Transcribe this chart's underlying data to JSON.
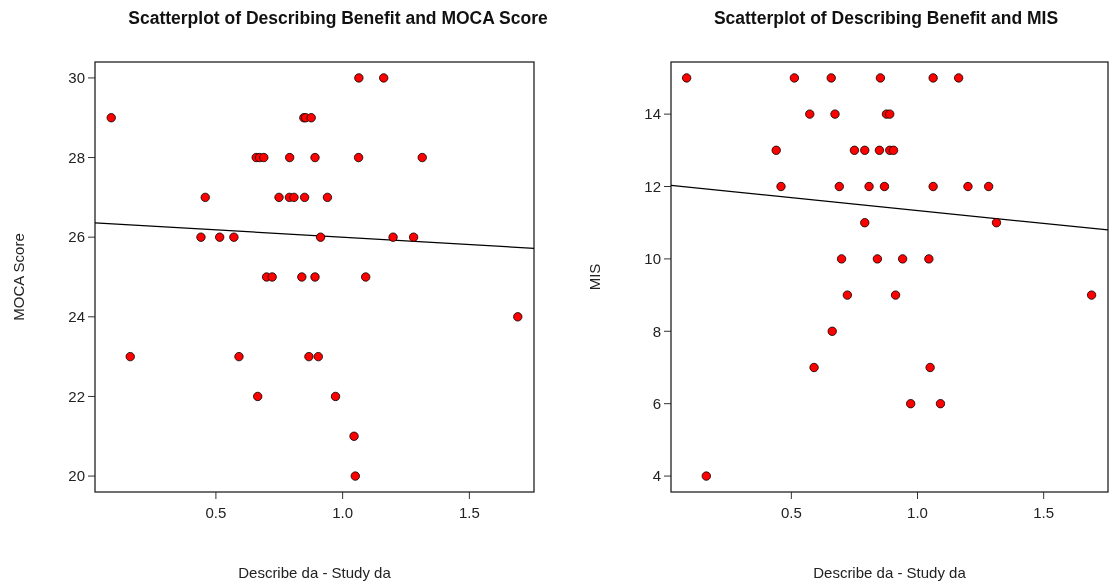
{
  "chart_data": [
    {
      "type": "scatter",
      "title": "Scatterplot of Describing Benefit and MOCA Score",
      "xlabel": "Describe da - Study da",
      "ylabel": "MOCA Score",
      "xlim": [
        0.023,
        1.755
      ],
      "ylim": [
        19.6,
        30.4
      ],
      "xticks": [
        {
          "value": 0.5,
          "label": "0.5"
        },
        {
          "value": 1,
          "label": "1.0"
        },
        {
          "value": 1.5,
          "label": "1.5"
        }
      ],
      "yticks": [
        20,
        22,
        24,
        26,
        28,
        30
      ],
      "series": [
        {
          "type": "scatter",
          "marker": "circle",
          "color": "#ff0000",
          "x": [
            1.064,
            1.162,
            0.087,
            0.847,
            0.854,
            0.876,
            0.659,
            0.672,
            0.689,
            0.791,
            0.891,
            1.063,
            1.314,
            0.458,
            0.749,
            0.79,
            0.808,
            0.85,
            0.94,
            0.441,
            0.515,
            0.571,
            0.913,
            1.199,
            1.28,
            0.7,
            0.722,
            0.839,
            0.891,
            1.091,
            1.691,
            0.162,
            0.591,
            0.867,
            0.904,
            0.665,
            0.972,
            1.045,
            1.05
          ],
          "values": [
            30,
            30,
            29,
            29,
            29,
            29,
            28,
            28,
            28,
            28,
            28,
            28,
            28,
            27,
            27,
            27,
            27,
            27,
            27,
            26,
            26,
            26,
            26,
            26,
            26,
            25,
            25,
            25,
            25,
            25,
            24,
            23,
            23,
            23,
            23,
            22,
            22,
            21,
            20
          ]
        },
        {
          "type": "line",
          "marker": "none",
          "color": "#000000",
          "x": [
            0.023,
            1.755
          ],
          "values": [
            26.36,
            25.72
          ]
        }
      ]
    },
    {
      "type": "scatter",
      "title": "Scatterplot of Describing Benefit and MIS",
      "xlabel": "Describe da - Study da",
      "ylabel": "MIS",
      "xlim": [
        0.023,
        1.755
      ],
      "ylim": [
        3.56,
        15.44
      ],
      "xticks": [
        {
          "value": 0.5,
          "label": "0.5"
        },
        {
          "value": 1,
          "label": "1.0"
        },
        {
          "value": 1.5,
          "label": "1.5"
        }
      ],
      "yticks": [
        4,
        6,
        8,
        10,
        12,
        14
      ],
      "series": [
        {
          "type": "scatter",
          "marker": "circle",
          "color": "#ff0000",
          "x": [
            0.085,
            0.512,
            0.658,
            0.853,
            1.062,
            1.163,
            0.573,
            0.673,
            0.877,
            0.89,
            0.44,
            0.75,
            0.791,
            0.849,
            0.89,
            0.905,
            0.459,
            0.69,
            0.808,
            0.869,
            1.062,
            1.2,
            1.282,
            0.791,
            1.313,
            0.699,
            0.841,
            0.941,
            1.045,
            0.722,
            0.913,
            1.69,
            0.662,
            0.59,
            1.05,
            0.973,
            1.091,
            0.163
          ],
          "values": [
            15,
            15,
            15,
            15,
            15,
            15,
            14,
            14,
            14,
            14,
            13,
            13,
            13,
            13,
            13,
            13,
            12,
            12,
            12,
            12,
            12,
            12,
            12,
            11,
            11,
            10,
            10,
            10,
            10,
            9,
            9,
            9,
            8,
            7,
            7,
            6,
            6,
            4
          ]
        },
        {
          "type": "line",
          "marker": "none",
          "color": "#000000",
          "x": [
            0.023,
            1.755
          ],
          "values": [
            12.03,
            10.8
          ]
        }
      ]
    }
  ]
}
